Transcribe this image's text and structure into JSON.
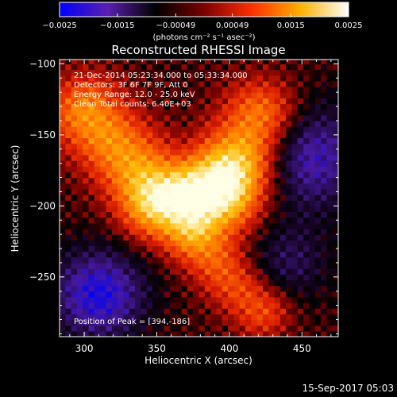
{
  "chart_data": {
    "type": "heatmap",
    "title": "Reconstructed RHESSI Image",
    "xlabel": "Heliocentric X (arcsec)",
    "ylabel": "Heliocentric Y (arcsec)",
    "xlim": [
      283,
      475
    ],
    "ylim": [
      -292,
      -97
    ],
    "x_ticks": [
      "300",
      "350",
      "400",
      "450"
    ],
    "x_tick_values": [
      300,
      350,
      400,
      450
    ],
    "y_ticks": [
      "−100",
      "−150",
      "−200",
      "−250"
    ],
    "y_tick_values": [
      -100,
      -150,
      -200,
      -250
    ],
    "colorbar": {
      "range": [
        -0.0025,
        0.0025
      ],
      "ticks": [
        "−0.0025",
        "−0.0015",
        "−0.00049",
        "0.00049",
        "0.0015",
        "0.0025"
      ],
      "tick_values": [
        -0.0025,
        -0.0015,
        -0.00049,
        0.00049,
        0.0015,
        0.0025
      ],
      "units_label": "(photons cm⁻² s⁻¹ asec⁻²)",
      "colors": [
        "#0000ff",
        "#5a1fae",
        "#000000",
        "#7a0000",
        "#ff3000",
        "#ffb000",
        "#ffffff"
      ]
    },
    "annotations": [
      "21-Dec-2014 05:23:34.000 to 05:33:34.000",
      "Detectors: 3F 6F 7F 9F, Att 0",
      "Energy Range: 12.0 - 25.0 keV",
      "Clean      Total counts: 6.40E+03"
    ],
    "peak_label": "Position of Peak = [394,-186]",
    "peak": [
      394,
      -186
    ],
    "features": {
      "bright_ridge": [
        [
          302,
          -135
        ],
        [
          328,
          -165
        ],
        [
          348,
          -190
        ],
        [
          372,
          -193
        ],
        [
          394,
          -186
        ],
        [
          410,
          -165
        ],
        [
          422,
          -138
        ]
      ],
      "lower_ridge": [
        [
          378,
          -225
        ],
        [
          400,
          -250
        ],
        [
          422,
          -272
        ]
      ],
      "negative_regions": [
        [
          310,
          -262
        ],
        [
          455,
          -165
        ]
      ]
    }
  },
  "footer_timestamp": "15-Sep-2017 05:03"
}
